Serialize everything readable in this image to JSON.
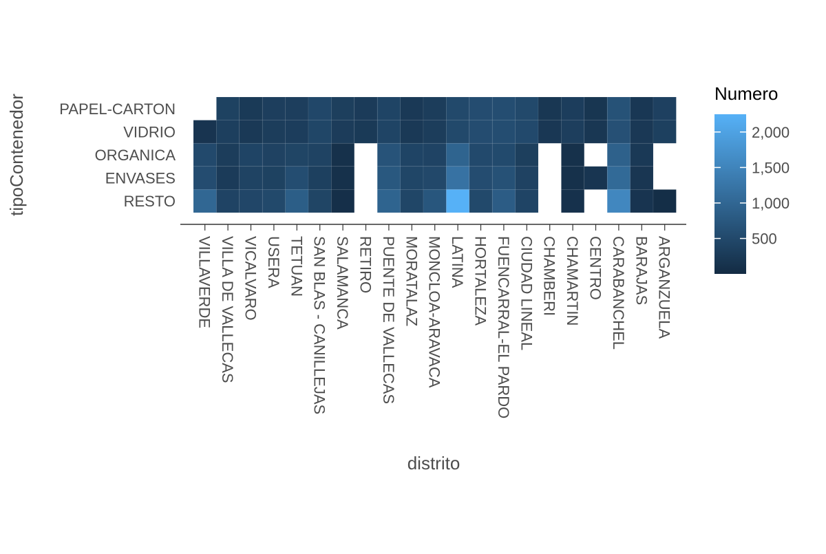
{
  "chart_data": {
    "type": "heatmap",
    "title": "",
    "xlabel": "distrito",
    "ylabel": "tipoContenedor",
    "legend_title": "Numero",
    "legend_placement": "right",
    "legend_ticks": [
      {
        "value": 500,
        "label": "500"
      },
      {
        "value": 1000,
        "label": "1,000"
      },
      {
        "value": 1500,
        "label": "1,500"
      },
      {
        "value": 2000,
        "label": "2,000"
      }
    ],
    "color_scale": {
      "min": 1,
      "max": 2250,
      "low": "#132B43",
      "high": "#56B1F7"
    },
    "x": [
      "VILLAVERDE",
      "VILLA DE VALLECAS",
      "VICALVARO",
      "USERA",
      "TETUAN",
      "SAN BLAS - CANILLEJAS",
      "SALAMANCA",
      "RETIRO",
      "PUENTE DE VALLECAS",
      "MORATALAZ",
      "MONCLOA-ARAVACA",
      "LATINA",
      "HORTALEZA",
      "FUENCARRAL-EL PARDO",
      "CIUDAD LINEAL",
      "CHAMBERI",
      "CHAMARTIN",
      "CENTRO",
      "CARABANCHEL",
      "BARAJAS",
      "ARGANZUELA"
    ],
    "y": [
      "PAPEL-CARTON",
      "VIDRIO",
      "ORGANICA",
      "ENVASES",
      "RESTO"
    ],
    "values": [
      [
        null,
        380,
        250,
        320,
        320,
        470,
        330,
        270,
        420,
        240,
        300,
        500,
        560,
        580,
        500,
        200,
        310,
        180,
        650,
        210,
        360
      ],
      [
        160,
        340,
        240,
        300,
        310,
        450,
        290,
        250,
        420,
        240,
        300,
        500,
        560,
        580,
        510,
        210,
        320,
        200,
        630,
        220,
        350
      ],
      [
        510,
        300,
        420,
        390,
        430,
        400,
        100,
        null,
        670,
        420,
        410,
        950,
        510,
        520,
        330,
        null,
        100,
        null,
        900,
        240,
        null
      ],
      [
        560,
        270,
        400,
        380,
        570,
        350,
        100,
        null,
        750,
        450,
        490,
        1200,
        560,
        640,
        390,
        null,
        100,
        170,
        1050,
        190,
        null
      ],
      [
        1000,
        410,
        460,
        500,
        850,
        430,
        70,
        null,
        950,
        450,
        720,
        2250,
        500,
        830,
        420,
        null,
        110,
        null,
        1550,
        160,
        50
      ]
    ]
  }
}
